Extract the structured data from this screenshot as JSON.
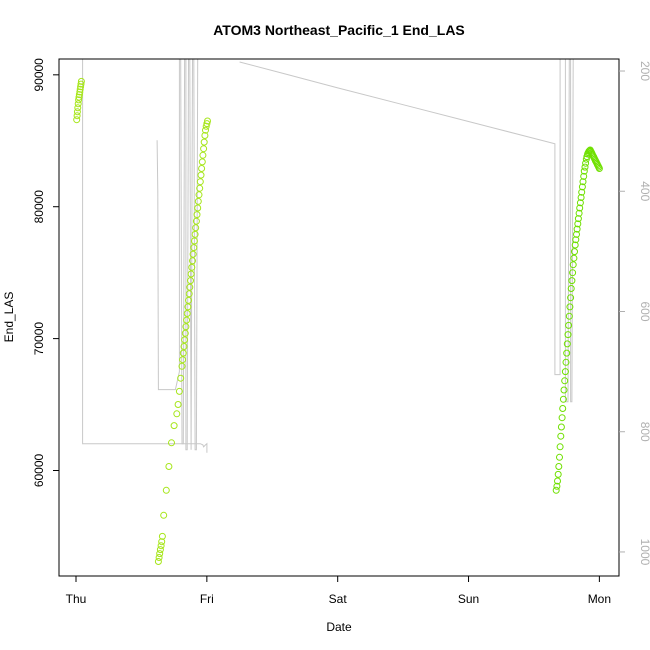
{
  "chart_data": {
    "type": "scatter",
    "title": "ATOM3 Northeast_Pacific_1 End_LAS",
    "xlabel": "Date",
    "ylabel": "End_LAS",
    "x_ticks": [
      "Thu",
      "Fri",
      "Sat",
      "Sun",
      "Mon"
    ],
    "x_unit": "days from Thu 00:00",
    "xlim": [
      -0.13,
      4.15
    ],
    "ylim": [
      52000,
      91200
    ],
    "y_ticks": [
      60000,
      70000,
      80000,
      90000
    ],
    "y2_ticks": [
      200,
      400,
      600,
      800,
      1000
    ],
    "y2lim": [
      1040,
      180
    ],
    "grid": false,
    "colors": {
      "points": "#a6e61a",
      "points_late": "#6fe000",
      "line": "#c8c8c8",
      "axis": "#000000",
      "right_axis": "#b0b0b0"
    },
    "series": [
      {
        "type": "points",
        "x": [
          0.005,
          0.008,
          0.011,
          0.014,
          0.017,
          0.02,
          0.023,
          0.026,
          0.029,
          0.032,
          0.035,
          0.038,
          0.041
        ],
        "y": [
          86600,
          86900,
          87200,
          87500,
          87800,
          88100,
          88300,
          88500,
          88700,
          88900,
          89100,
          89300,
          89500
        ]
      },
      {
        "type": "points",
        "x": [
          0.63,
          0.635,
          0.64,
          0.645,
          0.65,
          0.655,
          0.66,
          0.67,
          0.69,
          0.71,
          0.73,
          0.75,
          0.77,
          0.78,
          0.79,
          0.8,
          0.81,
          0.815,
          0.82,
          0.825,
          0.83,
          0.835,
          0.84,
          0.845,
          0.85,
          0.855,
          0.86,
          0.865,
          0.87,
          0.875,
          0.88,
          0.885,
          0.89,
          0.895,
          0.9,
          0.905,
          0.91,
          0.915,
          0.92,
          0.925,
          0.93,
          0.935,
          0.94,
          0.945,
          0.95,
          0.955,
          0.96,
          0.965,
          0.97,
          0.975,
          0.98,
          0.985,
          0.99,
          0.995,
          1.0,
          1.005
        ],
        "y": [
          53100,
          53400,
          53700,
          54000,
          54300,
          54600,
          55000,
          56600,
          58500,
          60300,
          62100,
          63400,
          64300,
          65000,
          66000,
          67000,
          67900,
          68400,
          68900,
          69400,
          69900,
          70400,
          70900,
          71400,
          71900,
          72400,
          72900,
          73400,
          73900,
          74400,
          74900,
          75400,
          75900,
          76400,
          76900,
          77400,
          77900,
          78400,
          78900,
          79400,
          79900,
          80400,
          80900,
          81400,
          81900,
          82400,
          82900,
          83400,
          83900,
          84400,
          84900,
          85400,
          85800,
          86100,
          86300,
          86500
        ]
      },
      {
        "type": "points",
        "x": [
          3.67,
          3.675,
          3.68,
          3.685,
          3.69,
          3.695,
          3.7,
          3.705,
          3.71,
          3.715,
          3.72,
          3.725,
          3.73,
          3.735,
          3.74,
          3.745,
          3.75,
          3.755,
          3.76,
          3.765,
          3.77,
          3.775,
          3.78,
          3.785,
          3.79,
          3.795,
          3.8,
          3.805,
          3.81,
          3.815,
          3.82,
          3.825,
          3.83,
          3.835,
          3.84,
          3.845,
          3.85,
          3.855,
          3.86,
          3.865,
          3.87,
          3.875,
          3.88,
          3.885,
          3.89,
          3.895,
          3.9,
          3.905,
          3.91,
          3.915,
          3.92,
          3.925,
          3.93,
          3.935,
          3.94,
          3.945,
          3.95,
          3.955,
          3.96,
          3.965,
          3.97,
          3.975,
          3.98,
          3.985,
          3.99,
          3.995,
          4.0
        ],
        "y": [
          58500,
          58800,
          59200,
          59700,
          60300,
          61000,
          61800,
          62600,
          63300,
          64000,
          64700,
          65400,
          66100,
          66800,
          67500,
          68200,
          68900,
          69600,
          70300,
          71000,
          71700,
          72400,
          73100,
          73800,
          74400,
          75000,
          75600,
          76100,
          76600,
          77100,
          77500,
          77900,
          78300,
          78700,
          79100,
          79500,
          79900,
          80300,
          80700,
          81100,
          81500,
          81900,
          82300,
          82700,
          83000,
          83300,
          83600,
          83800,
          84000,
          84100,
          84200,
          84250,
          84300,
          84200,
          84100,
          84000,
          83900,
          83800,
          83700,
          83600,
          83500,
          83400,
          83300,
          83200,
          83100,
          83000,
          82900
        ]
      },
      {
        "type": "line",
        "axis": "right",
        "x": [
          0.0,
          0.02,
          0.05,
          0.05,
          0.95,
          0.97,
          0.975,
          0.99,
          1.0,
          1.0
        ],
        "y": [
          180,
          180,
          180,
          820,
          820,
          822,
          825,
          822,
          820,
          835
        ]
      },
      {
        "type": "line",
        "axis": "right",
        "x": [
          0.62,
          0.625,
          0.63,
          0.74,
          0.76,
          0.79,
          0.79,
          0.8,
          0.81,
          0.82,
          0.83,
          0.84,
          0.84,
          0.85,
          0.86,
          0.87,
          0.88,
          0.89,
          0.9,
          0.91,
          0.92,
          0.93,
          0.95,
          0.96,
          0.97,
          0.98,
          0.99,
          1.0,
          1.02,
          1.05,
          1.2,
          1.5,
          2.0,
          2.5,
          3.0,
          3.5,
          3.6,
          3.66,
          3.66,
          3.67,
          3.68,
          3.7,
          3.71,
          3.72,
          3.73,
          3.74,
          3.75,
          3.76,
          3.77,
          3.78,
          3.79,
          3.8,
          3.81,
          3.82,
          3.83,
          3.84,
          3.85,
          3.86,
          3.87,
          3.88,
          3.9,
          3.92,
          3.94,
          3.96,
          3.98,
          3.99,
          3.99,
          4.0
        ],
        "y": [
          315,
          400,
          730,
          730,
          730,
          700,
          180,
          180,
          820,
          820,
          180,
          180,
          830,
          830,
          180,
          180,
          830,
          180,
          180,
          830,
          830,
          180,
          180,
          180,
          180,
          180,
          180,
          180,
          180,
          180,
          180,
          180,
          180,
          180,
          180,
          180,
          180,
          180,
          180,
          180,
          180,
          180,
          180,
          180,
          180,
          180,
          180,
          180,
          180,
          180,
          180,
          180,
          180,
          180,
          180,
          180,
          180,
          180,
          180,
          180,
          180,
          180,
          180,
          180,
          180,
          180,
          180,
          180
        ]
      },
      {
        "type": "line",
        "axis": "right",
        "x": [
          1.25,
          1.6,
          2.0,
          2.5,
          3.0,
          3.5,
          3.66,
          3.66,
          3.67,
          3.68,
          3.7,
          3.7,
          3.72,
          3.73,
          3.74,
          3.74,
          3.76,
          3.77,
          3.78,
          3.78,
          3.79,
          3.8,
          3.81,
          3.82,
          3.83,
          3.84,
          3.85,
          3.86,
          3.87,
          3.88,
          3.89,
          3.9,
          3.92,
          3.94,
          3.96,
          3.98,
          3.99
        ],
        "y": [
          185,
          205,
          228,
          256,
          284,
          312,
          321,
          705,
          705,
          705,
          705,
          180,
          180,
          180,
          180,
          750,
          750,
          180,
          180,
          750,
          750,
          180,
          180,
          180,
          180,
          180,
          180,
          180,
          180,
          180,
          180,
          180,
          180,
          180,
          180,
          180,
          180
        ]
      }
    ]
  }
}
